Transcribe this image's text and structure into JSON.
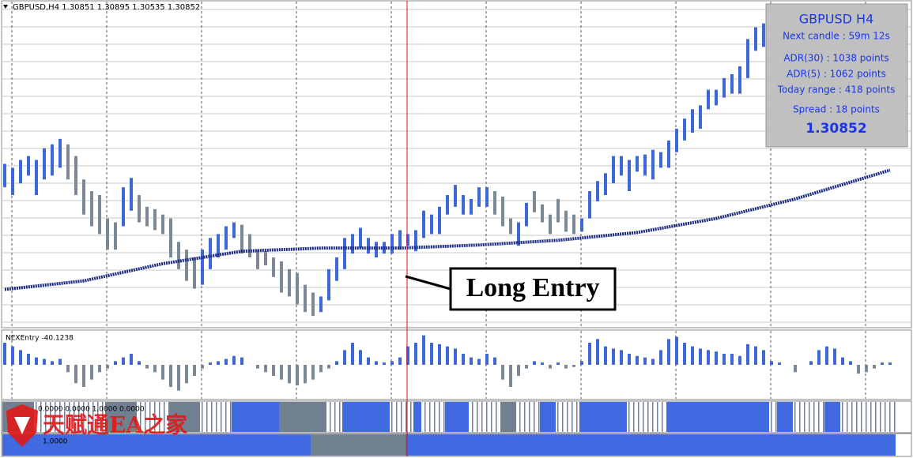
{
  "header": {
    "symbol_line": "GBPUSD,H4  1.30851 1.30895 1.30535 1.30852"
  },
  "info_panel": {
    "title": "GBPUSD H4",
    "next_candle": "Next candle : 59m 12s",
    "adr30": "ADR(30) : 1038 points",
    "adr5": "ADR(5) : 1062 points",
    "today_range": "Today range : 418 points",
    "spread": "Spread : 18 points",
    "price": "1.30852"
  },
  "annotation": "Long Entry",
  "watermark": "天赋通EA之家",
  "chart_data": [
    {
      "type": "range_bars",
      "ylim": [
        0,
        410
      ],
      "high": [
        205,
        200,
        210,
        215,
        210,
        225,
        230,
        237,
        230,
        215,
        185,
        170,
        165,
        135,
        130,
        175,
        187,
        165,
        150,
        147,
        140,
        135,
        105,
        95,
        85,
        95,
        110,
        115,
        125,
        130,
        127,
        115,
        95,
        93,
        85,
        80,
        70,
        65,
        50,
        40,
        35,
        70,
        85,
        110,
        115,
        123,
        110,
        105,
        105,
        115,
        120,
        115,
        120,
        145,
        140,
        150,
        165,
        178,
        165,
        160,
        175,
        175,
        170,
        163,
        135,
        130,
        155,
        170,
        153,
        140,
        160,
        145,
        140,
        135,
        170,
        183,
        193,
        215,
        215,
        210,
        215,
        217,
        223,
        220,
        235,
        250,
        263,
        275,
        280,
        300,
        300,
        315,
        320,
        330,
        365,
        380,
        385
      ],
      "low": [
        175,
        165,
        180,
        190,
        165,
        185,
        190,
        200,
        185,
        165,
        140,
        125,
        115,
        95,
        95,
        125,
        145,
        130,
        125,
        120,
        115,
        85,
        70,
        55,
        45,
        50,
        70,
        85,
        95,
        110,
        90,
        85,
        70,
        75,
        60,
        40,
        35,
        25,
        15,
        10,
        15,
        30,
        55,
        70,
        90,
        97,
        90,
        85,
        90,
        90,
        95,
        100,
        93,
        110,
        115,
        115,
        140,
        150,
        140,
        140,
        150,
        150,
        140,
        125,
        115,
        100,
        125,
        143,
        130,
        115,
        130,
        118,
        115,
        118,
        135,
        157,
        165,
        180,
        190,
        170,
        195,
        190,
        185,
        200,
        200,
        220,
        235,
        245,
        250,
        275,
        280,
        290,
        295,
        295,
        315,
        350,
        355
      ],
      "color_runs": [
        {
          "color": "#3d66d6",
          "bars": 8
        },
        {
          "color": "#7b8896",
          "bars": 7
        },
        {
          "color": "#3d66d6",
          "bars": 2
        },
        {
          "color": "#7b8896",
          "bars": 8
        },
        {
          "color": "#3d66d6",
          "bars": 5
        },
        {
          "color": "#7b8896",
          "bars": 10
        },
        {
          "color": "#3d66d6",
          "bars": 22
        },
        {
          "color": "#7b8896",
          "bars": 3
        },
        {
          "color": "#3d66d6",
          "bars": 2
        },
        {
          "color": "#7b8896",
          "bars": 6
        },
        {
          "color": "#3d66d6",
          "bars": 24
        }
      ],
      "ma": {
        "color": "#1b2a80",
        "x": [
          0,
          10,
          20,
          30,
          40,
          50,
          60,
          70,
          80,
          90,
          100,
          112
        ],
        "values": [
          44,
          55,
          77,
          93,
          97,
          97,
          101,
          107,
          117,
          135,
          160,
          197
        ]
      }
    },
    {
      "type": "histogram",
      "label": "NEXEntry -40.1238",
      "ylim": [
        -45,
        45
      ],
      "up_color": "#3d66d6",
      "down_color": "#7b8896",
      "values": [
        30,
        25,
        20,
        15,
        10,
        8,
        5,
        8,
        -10,
        -25,
        -30,
        -20,
        -10,
        -5,
        5,
        10,
        15,
        5,
        -5,
        -10,
        -20,
        -30,
        -35,
        -25,
        -15,
        -5,
        3,
        5,
        8,
        12,
        10,
        0,
        -5,
        -10,
        -15,
        -20,
        -25,
        -28,
        -25,
        -20,
        -10,
        -5,
        5,
        20,
        30,
        20,
        10,
        5,
        3,
        5,
        10,
        25,
        30,
        40,
        30,
        28,
        25,
        22,
        15,
        10,
        8,
        15,
        10,
        -20,
        -30,
        -15,
        -5,
        5,
        3,
        -5,
        3,
        -5,
        -3,
        5,
        30,
        35,
        25,
        22,
        20,
        15,
        12,
        10,
        8,
        20,
        35,
        38,
        30,
        25,
        22,
        20,
        18,
        15,
        15,
        12,
        28,
        25,
        20,
        5,
        3,
        0,
        -10,
        0,
        5,
        20,
        25,
        22,
        10,
        5,
        -12,
        -10,
        -5,
        3,
        3
      ]
    },
    {
      "type": "state_strip",
      "label": "0.0000 0.0000 1.0000 0.0000",
      "runs": [
        {
          "state": 0,
          "bars": 4
        },
        {
          "state": 2,
          "bars": 9
        },
        {
          "state": 0,
          "bars": 4
        },
        {
          "state": 2,
          "bars": 4
        },
        {
          "state": 0,
          "bars": 4
        },
        {
          "state": 2,
          "bars": 4
        },
        {
          "state": 1,
          "bars": 6
        },
        {
          "state": 0,
          "bars": 6
        },
        {
          "state": 2,
          "bars": 2
        },
        {
          "state": 1,
          "bars": 6
        },
        {
          "state": 2,
          "bars": 3
        },
        {
          "state": 1,
          "bars": 1
        },
        {
          "state": 2,
          "bars": 3
        },
        {
          "state": 1,
          "bars": 3
        },
        {
          "state": 2,
          "bars": 4
        },
        {
          "state": 0,
          "bars": 2
        },
        {
          "state": 2,
          "bars": 3
        },
        {
          "state": 1,
          "bars": 2
        },
        {
          "state": 2,
          "bars": 3
        },
        {
          "state": 1,
          "bars": 6
        },
        {
          "state": 2,
          "bars": 5
        },
        {
          "state": 1,
          "bars": 13
        },
        {
          "state": 2,
          "bars": 1
        },
        {
          "state": 1,
          "bars": 2
        },
        {
          "state": 2,
          "bars": 4
        },
        {
          "state": 1,
          "bars": 2
        },
        {
          "state": 2,
          "bars": 7
        }
      ]
    },
    {
      "type": "state_strip",
      "label": "1.0000",
      "runs": [
        {
          "state": 1,
          "bars": 39
        },
        {
          "state": 0,
          "bars": 12
        },
        {
          "state": 1,
          "bars": 62
        }
      ]
    }
  ]
}
